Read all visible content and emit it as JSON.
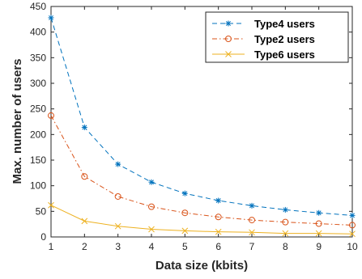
{
  "chart_data": {
    "type": "line",
    "xlabel": "Data size (kbits)",
    "ylabel": "Max. number of users",
    "xlim": [
      1,
      10
    ],
    "ylim": [
      0,
      450
    ],
    "xticks": [
      "1",
      "2",
      "3",
      "4",
      "5",
      "6",
      "7",
      "8",
      "9",
      "10"
    ],
    "yticks": [
      "0",
      "50",
      "100",
      "150",
      "200",
      "250",
      "300",
      "350",
      "400",
      "450"
    ],
    "grid": false,
    "legend_position": "top-right",
    "x": [
      1,
      2,
      3,
      4,
      5,
      6,
      7,
      8,
      9,
      10
    ],
    "series": [
      {
        "name": "Type4 users",
        "values": [
          428,
          214,
          142,
          107,
          85,
          71,
          61,
          53,
          47,
          42
        ],
        "color": "#0072BD",
        "marker": "asterisk",
        "line_style": "dashed"
      },
      {
        "name": "Type2 users",
        "values": [
          237,
          118,
          79,
          59,
          47,
          39,
          33,
          29,
          26,
          23
        ],
        "color": "#D95319",
        "marker": "circle",
        "line_style": "dash-dot"
      },
      {
        "name": "Type6 users",
        "values": [
          62,
          31,
          21,
          15,
          12,
          10,
          9,
          7,
          7,
          6
        ],
        "color": "#EDB120",
        "marker": "x",
        "line_style": "solid"
      }
    ]
  }
}
